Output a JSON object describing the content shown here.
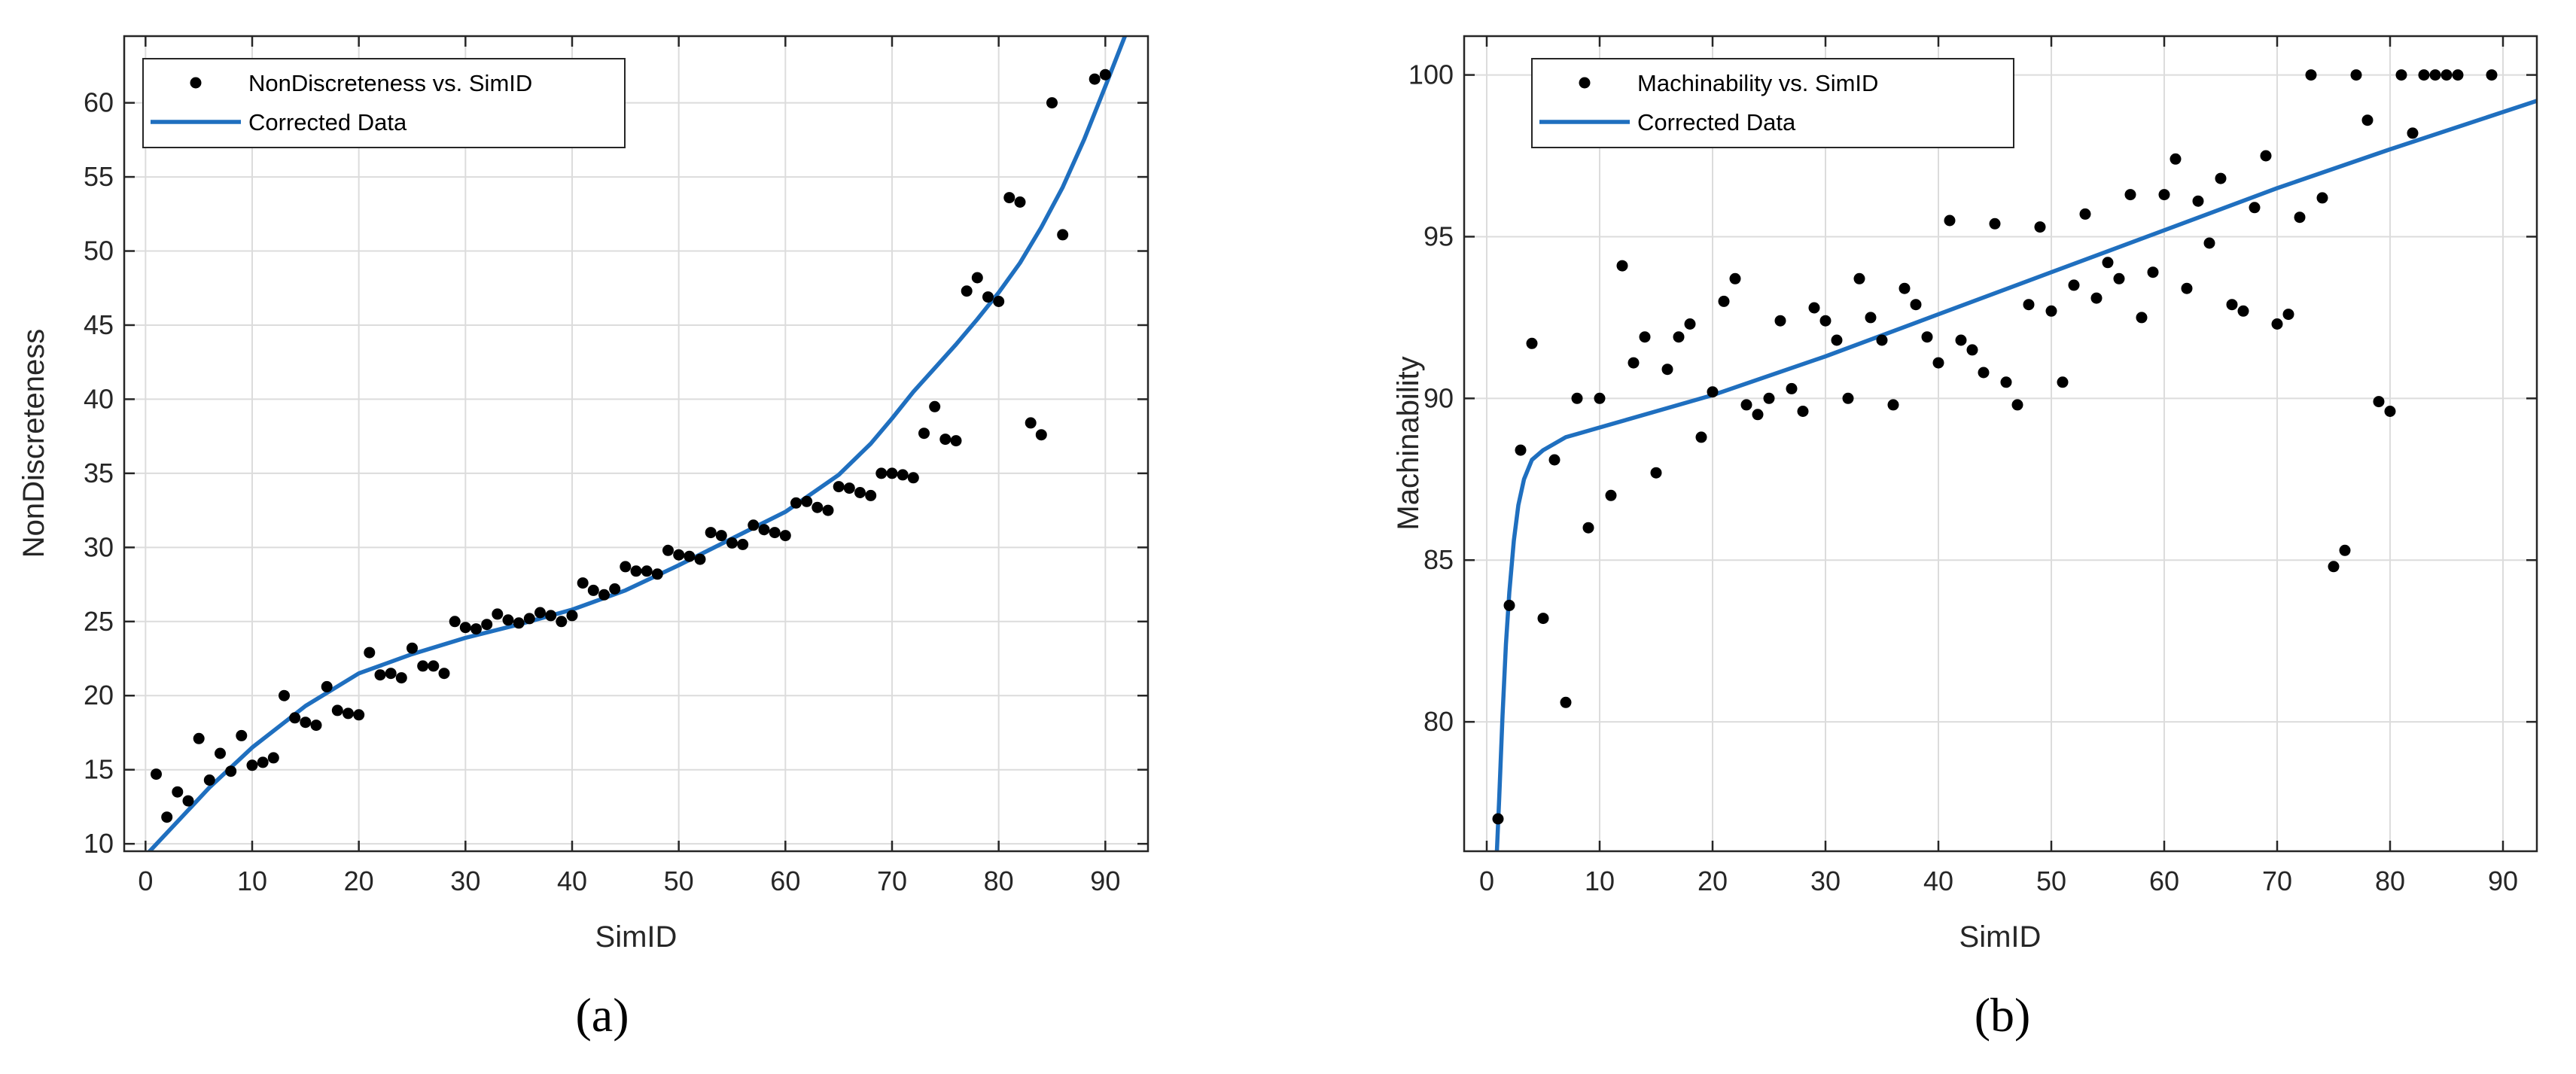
{
  "colors": {
    "series": "#1f6fbf",
    "points": "#000000",
    "grid": "#dcdcdc",
    "axes": "#262626"
  },
  "chart_data": [
    {
      "type": "scatter",
      "caption": "(a)",
      "xlabel": "SimID",
      "ylabel": "NonDiscreteness",
      "xlim": [
        -2,
        94
      ],
      "ylim": [
        9.5,
        64.5
      ],
      "xticks": [
        0,
        10,
        20,
        30,
        40,
        50,
        60,
        70,
        80,
        90
      ],
      "yticks": [
        10,
        15,
        20,
        25,
        30,
        35,
        40,
        45,
        50,
        55,
        60
      ],
      "grid": true,
      "legend_position": "top-left",
      "series": [
        {
          "name": "NonDiscreteness vs. SimID",
          "kind": "points",
          "x": [
            1,
            2,
            3,
            4,
            5,
            6,
            7,
            8,
            9,
            10,
            11,
            12,
            13,
            14,
            15,
            16,
            17,
            18,
            19,
            20,
            21,
            22,
            23,
            24,
            25,
            26,
            27,
            28,
            29,
            30,
            31,
            32,
            33,
            34,
            35,
            36,
            37,
            38,
            39,
            40,
            41,
            42,
            43,
            44,
            45,
            46,
            47,
            48,
            49,
            50,
            51,
            52,
            53,
            54,
            55,
            56,
            57,
            58,
            59,
            60,
            61,
            62,
            63,
            64,
            65,
            66,
            67,
            68,
            69,
            70,
            71,
            72,
            73,
            74,
            75,
            76,
            77,
            78,
            79,
            80,
            81,
            82,
            83,
            84,
            85,
            86,
            89,
            90
          ],
          "y": [
            14.7,
            11.8,
            13.5,
            12.9,
            17.1,
            14.3,
            16.1,
            14.9,
            17.3,
            15.3,
            15.5,
            15.8,
            20.0,
            18.5,
            18.2,
            18.0,
            20.6,
            19.0,
            18.8,
            18.7,
            22.9,
            21.4,
            21.5,
            21.2,
            23.2,
            22.0,
            22.0,
            21.5,
            25.0,
            24.6,
            24.5,
            24.8,
            25.5,
            25.1,
            24.9,
            25.2,
            25.6,
            25.4,
            25.0,
            25.4,
            27.6,
            27.1,
            26.8,
            27.2,
            28.7,
            28.4,
            28.4,
            28.2,
            29.8,
            29.5,
            29.4,
            29.2,
            31.0,
            30.8,
            30.3,
            30.2,
            31.5,
            31.2,
            31.0,
            30.8,
            33.0,
            33.1,
            32.7,
            32.5,
            34.1,
            34.0,
            33.7,
            33.5,
            35.0,
            35.0,
            34.9,
            34.7,
            37.7,
            39.5,
            37.3,
            37.2,
            47.3,
            48.2,
            46.9,
            46.6,
            53.6,
            53.3,
            38.4,
            37.6,
            60.0,
            51.1,
            61.6,
            61.9
          ]
        },
        {
          "name": "Corrected Data",
          "kind": "line",
          "x": [
            -2,
            0,
            3,
            6,
            10,
            15,
            20,
            25,
            30,
            35,
            40,
            45,
            50,
            55,
            60,
            65,
            68,
            70,
            72,
            74,
            76,
            78,
            80,
            82,
            84,
            86,
            88,
            90,
            92,
            94
          ],
          "y": [
            8.0,
            9.2,
            11.5,
            13.8,
            16.5,
            19.3,
            21.5,
            22.8,
            23.9,
            24.8,
            25.8,
            27.1,
            28.8,
            30.6,
            32.4,
            34.9,
            37.0,
            38.7,
            40.5,
            42.1,
            43.7,
            45.4,
            47.2,
            49.2,
            51.6,
            54.3,
            57.5,
            61.1,
            64.8,
            68.5
          ]
        }
      ]
    },
    {
      "type": "scatter",
      "caption": "(b)",
      "xlabel": "SimID",
      "ylabel": "Machinability",
      "xlim": [
        -2,
        93
      ],
      "ylim": [
        76,
        101.2
      ],
      "xticks": [
        0,
        10,
        20,
        30,
        40,
        50,
        60,
        70,
        80,
        90
      ],
      "yticks": [
        80,
        85,
        90,
        95,
        100
      ],
      "grid": true,
      "legend_position": "top-left",
      "series": [
        {
          "name": "Machinability vs. SimID",
          "kind": "points",
          "x": [
            1,
            2,
            3,
            4,
            5,
            6,
            7,
            8,
            9,
            10,
            11,
            12,
            13,
            14,
            15,
            16,
            17,
            18,
            19,
            20,
            21,
            22,
            23,
            24,
            25,
            26,
            27,
            28,
            29,
            30,
            31,
            32,
            33,
            34,
            35,
            36,
            37,
            38,
            39,
            40,
            41,
            42,
            43,
            44,
            45,
            46,
            47,
            48,
            49,
            50,
            51,
            52,
            53,
            54,
            55,
            56,
            57,
            58,
            59,
            60,
            61,
            62,
            63,
            64,
            65,
            66,
            67,
            68,
            69,
            70,
            71,
            72,
            73,
            74,
            75,
            76,
            77,
            78,
            79,
            80,
            81,
            82,
            83,
            84,
            85,
            86,
            89
          ],
          "y": [
            77.0,
            83.6,
            88.4,
            91.7,
            83.2,
            88.1,
            80.6,
            90.0,
            86.0,
            90.0,
            87.0,
            94.1,
            91.1,
            91.9,
            87.7,
            90.9,
            91.9,
            92.3,
            88.8,
            90.2,
            93.0,
            93.7,
            89.8,
            89.5,
            90.0,
            92.4,
            90.3,
            89.6,
            92.8,
            92.4,
            91.8,
            90.0,
            93.7,
            92.5,
            91.8,
            89.8,
            93.4,
            92.9,
            91.9,
            91.1,
            95.5,
            91.8,
            91.5,
            90.8,
            95.4,
            90.5,
            89.8,
            92.9,
            95.3,
            92.7,
            90.5,
            93.5,
            95.7,
            93.1,
            94.2,
            93.7,
            96.3,
            92.5,
            93.9,
            96.3,
            97.4,
            93.4,
            96.1,
            94.8,
            96.8,
            92.9,
            92.7,
            95.9,
            97.5,
            92.3,
            92.6,
            95.6,
            100.0,
            96.2,
            84.8,
            85.3,
            100.0,
            98.6,
            89.9,
            89.6,
            100.0,
            98.2,
            100.0,
            100.0,
            100.0,
            100.0,
            100.0
          ]
        },
        {
          "name": "Corrected Data",
          "kind": "line",
          "x": [
            0.9,
            1.1,
            1.4,
            1.7,
            2.0,
            2.4,
            2.8,
            3.3,
            4,
            5,
            6,
            7,
            8,
            10,
            15,
            20,
            30,
            40,
            50,
            60,
            70,
            80,
            93
          ],
          "y": [
            76.0,
            77.6,
            80.2,
            82.4,
            84.0,
            85.6,
            86.7,
            87.5,
            88.1,
            88.4,
            88.6,
            88.8,
            88.9,
            89.1,
            89.6,
            90.1,
            91.3,
            92.6,
            93.9,
            95.2,
            96.5,
            97.7,
            99.2
          ]
        }
      ]
    }
  ]
}
